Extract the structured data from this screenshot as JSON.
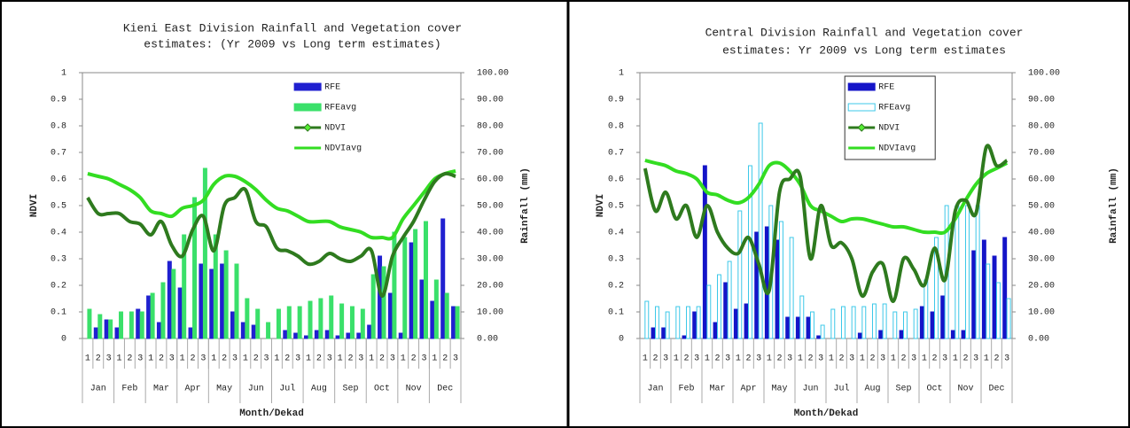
{
  "chart_data": [
    {
      "type": "bar-line",
      "title": [
        "Kieni East Division Rainfall and Vegetation cover",
        "estimates: (Yr 2009 vs Long term estimates)"
      ],
      "y_label": "NDVI",
      "y2_label": "Rainfall (mm)",
      "x_label": "Month/Dekad",
      "categories": [
        "1",
        "2",
        "3",
        "1",
        "2",
        "3",
        "1",
        "2",
        "3",
        "1",
        "2",
        "3",
        "1",
        "2",
        "3",
        "1",
        "2",
        "3",
        "1",
        "2",
        "3",
        "1",
        "2",
        "3",
        "1",
        "2",
        "3",
        "1",
        "2",
        "3",
        "1",
        "2",
        "3",
        "1",
        "2",
        "3"
      ],
      "months": [
        "Jan",
        "Feb",
        "Mar",
        "Apr",
        "May",
        "Jun",
        "Jul",
        "Aug",
        "Sep",
        "Oct",
        "Nov",
        "Dec"
      ],
      "ylim": [
        0,
        1
      ],
      "yticks": [
        0,
        0.1,
        0.2,
        0.3,
        0.4,
        0.5,
        0.6,
        0.7,
        0.8,
        0.9,
        1
      ],
      "y2lim": [
        0,
        100
      ],
      "y2ticks": [
        {
          "value": 0,
          "label": "0.00"
        },
        {
          "value": 10,
          "label": "10.00"
        },
        {
          "value": 20,
          "label": "20.00"
        },
        {
          "value": 30,
          "label": "30.00"
        },
        {
          "value": 40,
          "label": "40.00"
        },
        {
          "value": 50,
          "label": "50.00"
        },
        {
          "value": 60,
          "label": "60.00"
        },
        {
          "value": 70,
          "label": "70.00"
        },
        {
          "value": 80,
          "label": "80.00"
        },
        {
          "value": 90,
          "label": "90.00"
        },
        {
          "value": 100,
          "label": "100.00"
        }
      ],
      "legend": "upper-center",
      "legend_frame": false,
      "series": [
        {
          "name": "RFE",
          "kind": "bar",
          "axis": "y2",
          "color": "#2020d0",
          "fill": "#2020d0",
          "values": [
            0,
            4,
            7,
            4,
            0,
            11,
            16,
            6,
            29,
            19,
            4,
            28,
            26,
            28,
            10,
            6,
            5,
            0,
            0,
            3,
            2,
            1,
            3,
            3,
            1,
            2,
            2,
            5,
            31,
            17,
            2,
            36,
            22,
            14,
            45,
            12
          ]
        },
        {
          "name": "RFEavg",
          "kind": "bar",
          "axis": "y2",
          "color": "#3ae06a",
          "fill": "#3ae06a",
          "values": [
            11,
            9,
            7,
            10,
            10,
            10,
            17,
            21,
            26,
            39,
            53,
            64,
            39,
            33,
            28,
            15,
            11,
            6,
            11,
            12,
            12,
            14,
            15,
            16,
            13,
            12,
            11,
            24,
            27,
            40,
            38,
            41,
            44,
            22,
            17,
            12
          ]
        },
        {
          "name": "NDVI",
          "kind": "line",
          "color": "#2e7a1e",
          "width": 4,
          "marker": true,
          "values": [
            0.53,
            0.47,
            0.47,
            0.47,
            0.44,
            0.43,
            0.39,
            0.44,
            0.35,
            0.31,
            0.41,
            0.46,
            0.33,
            0.5,
            0.53,
            0.56,
            0.44,
            0.42,
            0.34,
            0.33,
            0.31,
            0.28,
            0.29,
            0.32,
            0.3,
            0.29,
            0.31,
            0.33,
            0.16,
            0.31,
            0.38,
            0.44,
            0.52,
            0.59,
            0.62,
            0.61
          ]
        },
        {
          "name": "NDVIavg",
          "kind": "line",
          "color": "#33dd22",
          "width": 4,
          "marker": false,
          "values": [
            0.62,
            0.61,
            0.6,
            0.58,
            0.56,
            0.53,
            0.48,
            0.47,
            0.46,
            0.49,
            0.5,
            0.52,
            0.58,
            0.61,
            0.61,
            0.59,
            0.56,
            0.52,
            0.49,
            0.48,
            0.46,
            0.44,
            0.44,
            0.44,
            0.42,
            0.41,
            0.4,
            0.38,
            0.38,
            0.38,
            0.45,
            0.5,
            0.55,
            0.6,
            0.62,
            0.63
          ]
        }
      ]
    },
    {
      "type": "bar-line",
      "title": [
        "Central Division Rainfall and Vegetation cover",
        "estimates: Yr 2009 vs Long term estimates"
      ],
      "y_label": "NDVI",
      "y2_label": "Rainfall (mm)",
      "x_label": "Month/Dekad",
      "categories": [
        "1",
        "2",
        "3",
        "1",
        "2",
        "3",
        "1",
        "2",
        "3",
        "1",
        "2",
        "3",
        "1",
        "2",
        "3",
        "1",
        "2",
        "3",
        "1",
        "2",
        "3",
        "1",
        "2",
        "3",
        "1",
        "2",
        "3",
        "1",
        "2",
        "3",
        "1",
        "2",
        "3",
        "1",
        "2",
        "3"
      ],
      "months": [
        "Jan",
        "Feb",
        "Mar",
        "Apr",
        "May",
        "Jun",
        "Jul",
        "Aug",
        "Sep",
        "Oct",
        "Nov",
        "Dec"
      ],
      "ylim": [
        0,
        1
      ],
      "yticks": [
        0,
        0.1,
        0.2,
        0.3,
        0.4,
        0.5,
        0.6,
        0.7,
        0.8,
        0.9,
        1
      ],
      "y2lim": [
        0,
        100
      ],
      "y2ticks": [
        {
          "value": 0,
          "label": "0.00"
        },
        {
          "value": 10,
          "label": "10.00"
        },
        {
          "value": 20,
          "label": "20.00"
        },
        {
          "value": 30,
          "label": "30.00"
        },
        {
          "value": 40,
          "label": "40.00"
        },
        {
          "value": 50,
          "label": "50.00"
        },
        {
          "value": 60,
          "label": "60.00"
        },
        {
          "value": 70,
          "label": "70.00"
        },
        {
          "value": 80,
          "label": "80.00"
        },
        {
          "value": 90,
          "label": "90.00"
        },
        {
          "value": 100,
          "label": "100.00"
        }
      ],
      "legend": "upper-center",
      "legend_frame": true,
      "series": [
        {
          "name": "RFE",
          "kind": "bar",
          "axis": "y2",
          "color": "#1414c8",
          "fill": "#1414c8",
          "values": [
            0,
            4,
            4,
            0,
            1,
            10,
            65,
            6,
            21,
            11,
            13,
            40,
            42,
            37,
            8,
            8,
            8,
            1,
            0,
            0,
            0,
            2,
            0,
            3,
            0,
            3,
            0,
            12,
            10,
            16,
            3,
            3,
            33,
            37,
            31,
            38
          ]
        },
        {
          "name": "RFEavg",
          "kind": "bar",
          "axis": "y2",
          "color": "#3cc8e8",
          "fill": "#ffffff",
          "values": [
            14,
            12,
            10,
            12,
            12,
            12,
            20,
            24,
            29,
            48,
            65,
            81,
            50,
            44,
            38,
            16,
            10,
            5,
            11,
            12,
            12,
            12,
            13,
            13,
            10,
            10,
            11,
            22,
            38,
            50,
            50,
            50,
            50,
            28,
            21,
            15
          ]
        },
        {
          "name": "NDVI",
          "kind": "line",
          "color": "#2e7a1e",
          "width": 4,
          "marker": true,
          "values": [
            0.64,
            0.48,
            0.55,
            0.45,
            0.5,
            0.38,
            0.5,
            0.4,
            0.34,
            0.32,
            0.38,
            0.28,
            0.18,
            0.55,
            0.6,
            0.61,
            0.3,
            0.5,
            0.35,
            0.36,
            0.3,
            0.16,
            0.25,
            0.28,
            0.14,
            0.3,
            0.26,
            0.2,
            0.34,
            0.22,
            0.48,
            0.52,
            0.47,
            0.72,
            0.65,
            0.67
          ]
        },
        {
          "name": "NDVIavg",
          "kind": "line",
          "color": "#33dd22",
          "width": 4,
          "marker": false,
          "values": [
            0.67,
            0.66,
            0.65,
            0.63,
            0.62,
            0.6,
            0.55,
            0.54,
            0.52,
            0.51,
            0.53,
            0.58,
            0.65,
            0.66,
            0.63,
            0.58,
            0.5,
            0.48,
            0.46,
            0.44,
            0.45,
            0.45,
            0.44,
            0.43,
            0.42,
            0.42,
            0.41,
            0.4,
            0.4,
            0.4,
            0.45,
            0.52,
            0.58,
            0.62,
            0.64,
            0.66
          ]
        }
      ]
    }
  ]
}
